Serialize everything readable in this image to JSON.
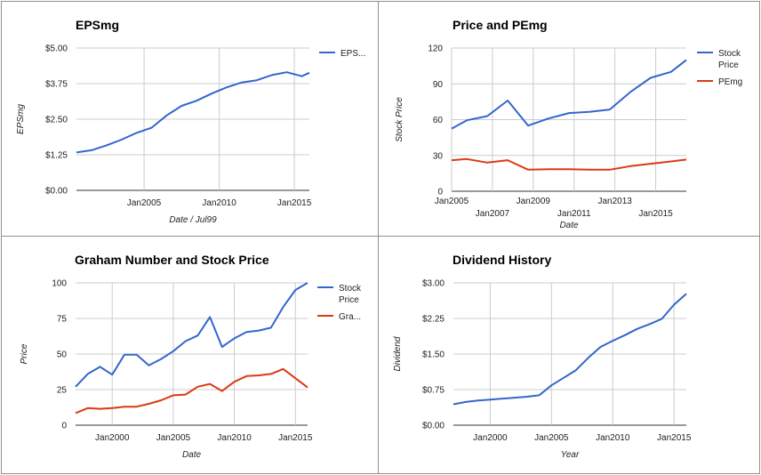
{
  "colors": {
    "blue": "#3366cc",
    "red": "#dc3912"
  },
  "chart_data": [
    {
      "id": "p0",
      "type": "line",
      "title": "EPSmg",
      "xlabel": "Date / Jul99",
      "ylabel": "EPSmg",
      "x_ticks": [
        {
          "x": 2005,
          "label": "Jan2005"
        },
        {
          "x": 2010,
          "label": "Jan2010"
        },
        {
          "x": 2015,
          "label": "Jan2015"
        }
      ],
      "y_ticks": [
        {
          "v": 0,
          "label": "$0.00"
        },
        {
          "v": 1.25,
          "label": "$1.25"
        },
        {
          "v": 2.5,
          "label": "$2.50"
        },
        {
          "v": 3.75,
          "label": "$3.75"
        },
        {
          "v": 5,
          "label": "$5.00"
        }
      ],
      "xlim": [
        2000.5,
        2016.0
      ],
      "ylim": [
        0,
        5
      ],
      "legend": "right",
      "series": [
        {
          "name": "EPS...",
          "color": "#3366cc",
          "x": [
            2000.5,
            2001.5,
            2002.5,
            2003.5,
            2004.5,
            2005.5,
            2006.5,
            2007.5,
            2008.5,
            2009.5,
            2010.5,
            2011.5,
            2012.5,
            2013.5,
            2014.5,
            2015.5,
            2016.0
          ],
          "y": [
            1.33,
            1.41,
            1.58,
            1.78,
            2.02,
            2.2,
            2.63,
            2.97,
            3.15,
            3.4,
            3.62,
            3.79,
            3.87,
            4.05,
            4.15,
            4.01,
            4.13
          ]
        }
      ]
    },
    {
      "id": "p1",
      "type": "line",
      "title": "Price and PEmg",
      "xlabel": "Date",
      "ylabel": "Stock Price",
      "x_ticks": [
        {
          "x": 2005,
          "label": "Jan2005"
        },
        {
          "x": 2007,
          "label": "Jan2007"
        },
        {
          "x": 2009,
          "label": "Jan2009"
        },
        {
          "x": 2011,
          "label": "Jan2011"
        },
        {
          "x": 2013,
          "label": "Jan2013"
        },
        {
          "x": 2015,
          "label": "Jan2015"
        }
      ],
      "y_ticks": [
        {
          "v": 0,
          "label": "0"
        },
        {
          "v": 30,
          "label": "30"
        },
        {
          "v": 60,
          "label": "60"
        },
        {
          "v": 90,
          "label": "90"
        },
        {
          "v": 120,
          "label": "120"
        }
      ],
      "xlim": [
        2005.0,
        2016.5
      ],
      "ylim": [
        0,
        120
      ],
      "legend": "right",
      "series": [
        {
          "name": "Stock Price",
          "color": "#3366cc",
          "x": [
            2005.0,
            2005.75,
            2006.75,
            2007.75,
            2008.75,
            2009.75,
            2010.75,
            2011.75,
            2012.75,
            2013.75,
            2014.75,
            2015.75,
            2016.5
          ],
          "y": [
            52.5,
            59.5,
            63,
            76,
            55,
            61,
            65.5,
            66.5,
            68.5,
            83,
            95,
            100,
            110
          ]
        },
        {
          "name": "PEmg",
          "color": "#dc3912",
          "x": [
            2005.0,
            2005.75,
            2006.75,
            2007.75,
            2008.75,
            2009.75,
            2010.75,
            2011.75,
            2012.75,
            2013.75,
            2014.75,
            2015.75,
            2016.5
          ],
          "y": [
            26,
            27,
            24,
            26,
            18,
            18.5,
            18.5,
            18,
            18,
            21,
            23,
            25,
            26.5
          ]
        }
      ]
    },
    {
      "id": "p2",
      "type": "line",
      "title": "Graham Number and Stock Price",
      "xlabel": "Date",
      "ylabel": "Price",
      "x_ticks": [
        {
          "x": 2000,
          "label": "Jan2000"
        },
        {
          "x": 2005,
          "label": "Jan2005"
        },
        {
          "x": 2010,
          "label": "Jan2010"
        },
        {
          "x": 2015,
          "label": "Jan2015"
        }
      ],
      "y_ticks": [
        {
          "v": 0,
          "label": "0"
        },
        {
          "v": 25,
          "label": "25"
        },
        {
          "v": 50,
          "label": "50"
        },
        {
          "v": 75,
          "label": "75"
        },
        {
          "v": 100,
          "label": "100"
        }
      ],
      "xlim": [
        1997.0,
        2016.0
      ],
      "ylim": [
        0,
        100
      ],
      "legend": "right",
      "series": [
        {
          "name": "Stock Price",
          "color": "#3366cc",
          "x": [
            1997.0,
            1998.0,
            1999.0,
            2000.0,
            2001.0,
            2002.0,
            2003.0,
            2004.0,
            2005.0,
            2006.0,
            2007.0,
            2008.0,
            2009.0,
            2010.0,
            2011.0,
            2012.0,
            2013.0,
            2014.0,
            2015.0,
            2016.0
          ],
          "y": [
            27,
            36,
            41,
            35.5,
            49.5,
            49.5,
            42,
            46.5,
            52,
            59,
            63,
            76,
            55,
            61,
            65.5,
            66.5,
            68.5,
            83,
            95,
            100
          ]
        },
        {
          "name": "Gra...",
          "color": "#dc3912",
          "x": [
            1997.0,
            1998.0,
            1999.0,
            2000.0,
            2001.0,
            2002.0,
            2003.0,
            2004.0,
            2005.0,
            2006.0,
            2007.0,
            2008.0,
            2009.0,
            2010.0,
            2011.0,
            2012.0,
            2013.0,
            2014.0,
            2015.0,
            2016.0
          ],
          "y": [
            8.5,
            12,
            11.5,
            12,
            13,
            13,
            15,
            17.5,
            21,
            21.5,
            27,
            29,
            24,
            30.5,
            34.5,
            35,
            36,
            39.5,
            33,
            26.5
          ]
        }
      ]
    },
    {
      "id": "p3",
      "type": "line",
      "title": "Dividend History",
      "xlabel": "Year",
      "ylabel": "Dividend",
      "x_ticks": [
        {
          "x": 2000,
          "label": "Jan2000"
        },
        {
          "x": 2005,
          "label": "Jan2005"
        },
        {
          "x": 2010,
          "label": "Jan2010"
        },
        {
          "x": 2015,
          "label": "Jan2015"
        }
      ],
      "y_ticks": [
        {
          "v": 0,
          "label": "$0.00"
        },
        {
          "v": 0.75,
          "label": "$0.75"
        },
        {
          "v": 1.5,
          "label": "$1.50"
        },
        {
          "v": 2.25,
          "label": "$2.25"
        },
        {
          "v": 3,
          "label": "$3.00"
        }
      ],
      "xlim": [
        1997.0,
        2016.0
      ],
      "ylim": [
        0,
        3
      ],
      "legend": "none",
      "series": [
        {
          "name": "",
          "color": "#3366cc",
          "x": [
            1997.0,
            1998.0,
            1999.0,
            2000.0,
            2001.0,
            2002.0,
            2003.0,
            2004.0,
            2005.0,
            2006.0,
            2007.0,
            2008.0,
            2009.0,
            2010.0,
            2011.0,
            2012.0,
            2013.0,
            2014.0,
            2015.0,
            2016.0
          ],
          "y": [
            0.44,
            0.49,
            0.52,
            0.54,
            0.56,
            0.58,
            0.6,
            0.63,
            0.84,
            1.0,
            1.16,
            1.42,
            1.65,
            1.78,
            1.9,
            2.03,
            2.13,
            2.24,
            2.54,
            2.77
          ]
        }
      ]
    }
  ]
}
